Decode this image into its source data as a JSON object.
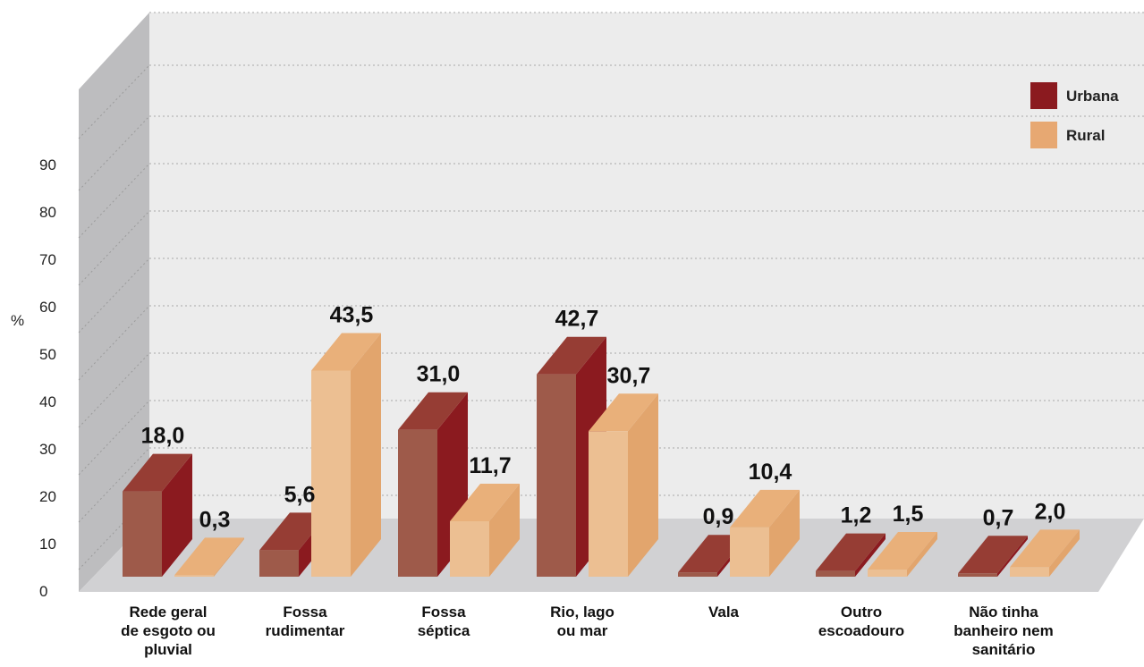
{
  "chart_data": {
    "type": "bar",
    "ylabel": "%",
    "ylim": [
      0,
      100
    ],
    "yticks": [
      0,
      10,
      20,
      30,
      40,
      50,
      60,
      70,
      80,
      90
    ],
    "grid": true,
    "legend_position": "top-right",
    "categories": [
      [
        "Rede geral",
        "de esgoto ou",
        "pluvial"
      ],
      [
        "Fossa",
        "rudimentar"
      ],
      [
        "Fossa",
        "séptica"
      ],
      [
        "Rio, lago",
        "ou mar"
      ],
      [
        "Vala"
      ],
      [
        "Outro",
        "escoadouro"
      ],
      [
        "Não tinha",
        "banheiro nem",
        "sanitário"
      ]
    ],
    "series": [
      {
        "name": "Urbana",
        "values": [
          18.0,
          5.6,
          31.0,
          42.7,
          0.9,
          1.2,
          0.7
        ],
        "labels": [
          "18,0",
          "5,6",
          "31,0",
          "42,7",
          "0,9",
          "1,2",
          "0,7"
        ]
      },
      {
        "name": "Rural",
        "values": [
          0.3,
          43.5,
          11.7,
          30.7,
          10.4,
          1.5,
          2.0
        ],
        "labels": [
          "0,3",
          "43,5",
          "11,7",
          "30,7",
          "10,4",
          "1,5",
          "2,0"
        ]
      }
    ],
    "colors": {
      "Urbana": {
        "front": "#9e5a4a",
        "side": "#8b1a1f",
        "top": "#963d34",
        "legend": "#8b1a1f"
      },
      "Rural": {
        "front": "#ecbf92",
        "side": "#e2a56d",
        "top": "#e9b07a",
        "legend": "#e7a872"
      }
    }
  }
}
